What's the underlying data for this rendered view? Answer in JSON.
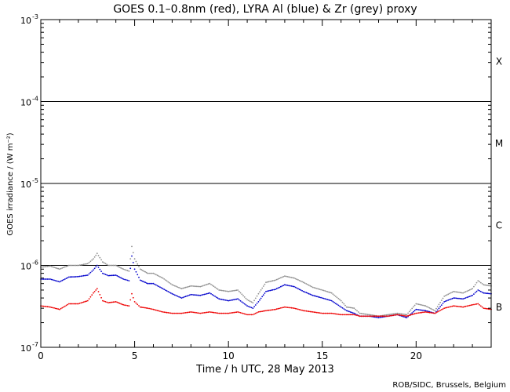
{
  "chart_data": {
    "type": "line",
    "title": "GOES 0.1–0.8nm (red), LYRA Al (blue) & Zr (grey) proxy",
    "xlabel": "Time / h UTC, 28 May 2013",
    "ylabel": "GOES irradiance / (W m⁻²)",
    "credit": "ROB/SIDC, Brussels, Belgium",
    "xlim": [
      0,
      24
    ],
    "ylim": [
      1e-07,
      0.001
    ],
    "yscale": "log",
    "x_ticks": [
      {
        "value": 0,
        "label": "0"
      },
      {
        "value": 5,
        "label": "5"
      },
      {
        "value": 10,
        "label": "10"
      },
      {
        "value": 15,
        "label": "15"
      },
      {
        "value": 20,
        "label": "20"
      }
    ],
    "y_ticks": [
      {
        "value": 1e-07,
        "base": "10",
        "exp": "-7"
      },
      {
        "value": 1e-06,
        "base": "10",
        "exp": "-6"
      },
      {
        "value": 1e-05,
        "base": "10",
        "exp": "-5"
      },
      {
        "value": 0.0001,
        "base": "10",
        "exp": "-4"
      },
      {
        "value": 0.001,
        "base": "10",
        "exp": "-3"
      }
    ],
    "flare_classes": [
      {
        "label": "X",
        "level": 0.000316
      },
      {
        "label": "M",
        "level": 3.16e-05
      },
      {
        "label": "C",
        "level": 3.16e-06
      },
      {
        "label": "B",
        "level": 3.16e-07
      }
    ],
    "reference_lines": [
      0.0001,
      1e-05,
      1e-06
    ],
    "series": [
      {
        "color": "#909090",
        "style": "dots",
        "x": [
          0,
          0.5,
          1,
          1.5,
          2,
          2.5,
          2.8,
          3.0,
          3.3,
          3.6,
          4,
          4.4,
          4.7,
          4.85,
          5.0,
          5.3,
          5.7,
          6,
          6.5,
          7,
          7.5,
          8,
          8.5,
          9,
          9.5,
          10,
          10.5,
          11,
          11.3,
          11.6,
          12,
          12.5,
          13,
          13.5,
          14,
          14.5,
          15,
          15.5,
          16,
          16.3,
          16.7,
          17,
          17.5,
          18,
          18.5,
          19,
          19.5,
          20,
          20.5,
          21,
          21.5,
          22,
          22.5,
          23,
          23.3,
          23.6,
          24
        ],
        "y": [
          9.5e-07,
          9.8e-07,
          9e-07,
          1e-06,
          1e-06,
          1.05e-06,
          1.2e-06,
          1.4e-06,
          1.1e-06,
          1e-06,
          1e-06,
          9e-07,
          8.5e-07,
          1.7e-06,
          1.2e-06,
          9e-07,
          8e-07,
          8e-07,
          7e-07,
          5.8e-07,
          5.2e-07,
          5.6e-07,
          5.5e-07,
          6e-07,
          5e-07,
          4.8e-07,
          5e-07,
          3.8e-07,
          3.5e-07,
          4.5e-07,
          6.2e-07,
          6.6e-07,
          7.4e-07,
          7e-07,
          6.2e-07,
          5.4e-07,
          5e-07,
          4.6e-07,
          3.7e-07,
          3.1e-07,
          3e-07,
          2.6e-07,
          2.5e-07,
          2.4e-07,
          2.5e-07,
          2.6e-07,
          2.5e-07,
          3.4e-07,
          3.2e-07,
          2.8e-07,
          4.2e-07,
          4.8e-07,
          4.6e-07,
          5.2e-07,
          6.5e-07,
          5.8e-07,
          5.6e-07
        ]
      },
      {
        "color": "#0000cc",
        "style": "dots",
        "x": [
          0,
          0.5,
          1,
          1.5,
          2,
          2.5,
          2.8,
          3.0,
          3.3,
          3.6,
          4,
          4.4,
          4.7,
          4.85,
          5.0,
          5.3,
          5.7,
          6,
          6.5,
          7,
          7.5,
          8,
          8.5,
          9,
          9.5,
          10,
          10.5,
          11,
          11.3,
          11.6,
          12,
          12.5,
          13,
          13.5,
          14,
          14.5,
          15,
          15.5,
          16,
          16.3,
          16.7,
          17,
          17.5,
          18,
          18.5,
          19,
          19.5,
          20,
          20.5,
          21,
          21.5,
          22,
          22.5,
          23,
          23.3,
          23.6,
          24
        ],
        "y": [
          6.8e-07,
          6.8e-07,
          6.3e-07,
          7.2e-07,
          7.3e-07,
          7.6e-07,
          8.8e-07,
          1e-06,
          8e-07,
          7.5e-07,
          7.6e-07,
          6.8e-07,
          6.5e-07,
          1.3e-06,
          9e-07,
          6.6e-07,
          6e-07,
          6e-07,
          5.2e-07,
          4.5e-07,
          4e-07,
          4.4e-07,
          4.3e-07,
          4.6e-07,
          3.9e-07,
          3.7e-07,
          3.9e-07,
          3.2e-07,
          3e-07,
          3.6e-07,
          4.8e-07,
          5.1e-07,
          5.8e-07,
          5.5e-07,
          4.8e-07,
          4.3e-07,
          4e-07,
          3.7e-07,
          3.1e-07,
          2.8e-07,
          2.6e-07,
          2.4e-07,
          2.4e-07,
          2.3e-07,
          2.4e-07,
          2.5e-07,
          2.3e-07,
          2.9e-07,
          2.8e-07,
          2.6e-07,
          3.6e-07,
          4e-07,
          3.9e-07,
          4.3e-07,
          5e-07,
          4.6e-07,
          4.5e-07
        ]
      },
      {
        "color": "#ee0000",
        "style": "dots",
        "x": [
          0,
          0.5,
          1,
          1.5,
          2,
          2.5,
          2.8,
          3.0,
          3.3,
          3.6,
          4,
          4.4,
          4.7,
          4.85,
          5.0,
          5.3,
          5.7,
          6,
          6.5,
          7,
          7.5,
          8,
          8.5,
          9,
          9.5,
          10,
          10.5,
          11,
          11.3,
          11.6,
          12,
          12.5,
          13,
          13.5,
          14,
          14.5,
          15,
          15.5,
          16,
          16.3,
          16.7,
          17,
          17.5,
          18,
          18.5,
          19,
          19.5,
          20,
          20.5,
          21,
          21.5,
          22,
          22.5,
          23,
          23.3,
          23.6,
          24
        ],
        "y": [
          3.2e-07,
          3.1e-07,
          2.9e-07,
          3.4e-07,
          3.4e-07,
          3.7e-07,
          4.6e-07,
          5.2e-07,
          3.7e-07,
          3.5e-07,
          3.6e-07,
          3.3e-07,
          3.2e-07,
          4.5e-07,
          3.6e-07,
          3.1e-07,
          3e-07,
          2.9e-07,
          2.7e-07,
          2.6e-07,
          2.6e-07,
          2.7e-07,
          2.6e-07,
          2.7e-07,
          2.6e-07,
          2.6e-07,
          2.7e-07,
          2.5e-07,
          2.5e-07,
          2.7e-07,
          2.8e-07,
          2.9e-07,
          3.1e-07,
          3e-07,
          2.8e-07,
          2.7e-07,
          2.6e-07,
          2.6e-07,
          2.5e-07,
          2.5e-07,
          2.5e-07,
          2.4e-07,
          2.4e-07,
          2.4e-07,
          2.4e-07,
          2.5e-07,
          2.4e-07,
          2.6e-07,
          2.7e-07,
          2.6e-07,
          3e-07,
          3.2e-07,
          3.1e-07,
          3.3e-07,
          3.4e-07,
          3e-07,
          2.9e-07
        ]
      }
    ]
  }
}
